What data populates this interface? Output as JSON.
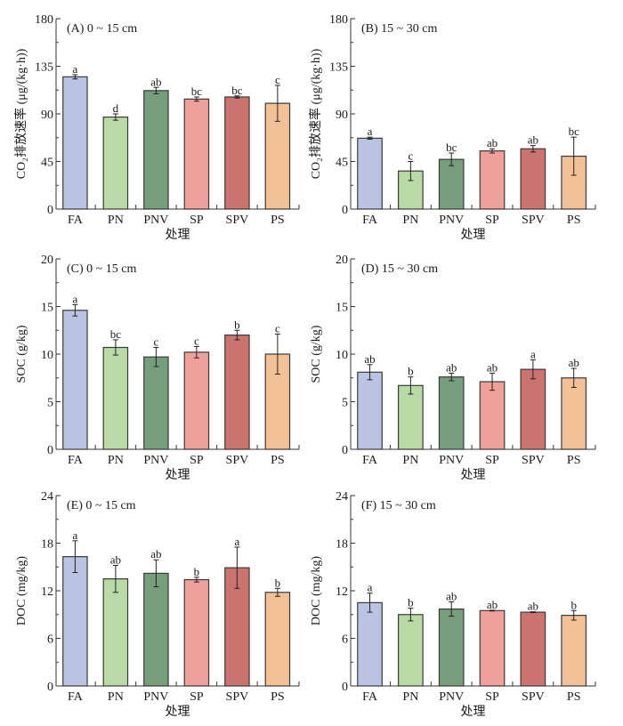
{
  "colors": [
    "#bbc3e3",
    "#b9d9a7",
    "#769e7c",
    "#eea09b",
    "#cb736e",
    "#f3c196"
  ],
  "chart_data": [
    {
      "type": "bar",
      "panel": "A",
      "title": "(A) 0 ~ 15 cm",
      "xlabel": "处理",
      "ylabel": "CO₂排放速率 (μg/(kg·h))",
      "ylim": [
        0,
        180
      ],
      "yticks": [
        0,
        45,
        90,
        135,
        180
      ],
      "categories": [
        "FA",
        "PN",
        "PNV",
        "SP",
        "SPV",
        "PS"
      ],
      "values": [
        125,
        87,
        112,
        104,
        106,
        100
      ],
      "errors": [
        2,
        3,
        3,
        2,
        1,
        17
      ],
      "letters": [
        "a",
        "d",
        "ab",
        "bc",
        "bc",
        "c"
      ]
    },
    {
      "type": "bar",
      "panel": "B",
      "title": "(B) 15 ~ 30 cm",
      "xlabel": "处理",
      "ylabel": "CO₂排放速率 (μg/(kg·h))",
      "ylim": [
        0,
        180
      ],
      "yticks": [
        0,
        45,
        90,
        135,
        180
      ],
      "categories": [
        "FA",
        "PN",
        "PNV",
        "SP",
        "SPV",
        "PS"
      ],
      "values": [
        67,
        36,
        47,
        55,
        57,
        50
      ],
      "errors": [
        1,
        9,
        6,
        2,
        3,
        18
      ],
      "letters": [
        "a",
        "c",
        "bc",
        "ab",
        "ab",
        "bc"
      ]
    },
    {
      "type": "bar",
      "panel": "C",
      "title": "(C) 0 ~ 15 cm",
      "xlabel": "处理",
      "ylabel": "SOC (g/kg)",
      "ylim": [
        0,
        20
      ],
      "yticks": [
        0,
        5,
        10,
        15,
        20
      ],
      "categories": [
        "FA",
        "PN",
        "PNV",
        "SP",
        "SPV",
        "PS"
      ],
      "values": [
        14.6,
        10.7,
        9.7,
        10.2,
        12.0,
        10.0
      ],
      "errors": [
        0.6,
        0.8,
        1.0,
        0.6,
        0.5,
        2.1
      ],
      "letters": [
        "a",
        "bc",
        "c",
        "c",
        "b",
        "c"
      ]
    },
    {
      "type": "bar",
      "panel": "D",
      "title": "(D) 15 ~ 30 cm",
      "xlabel": "处理",
      "ylabel": "SOC (g/kg)",
      "ylim": [
        0,
        20
      ],
      "yticks": [
        0,
        5,
        10,
        15,
        20
      ],
      "categories": [
        "FA",
        "PN",
        "PNV",
        "SP",
        "SPV",
        "PS"
      ],
      "values": [
        8.1,
        6.7,
        7.6,
        7.1,
        8.4,
        7.5
      ],
      "errors": [
        0.8,
        0.9,
        0.4,
        0.9,
        1.0,
        1.0
      ],
      "letters": [
        "ab",
        "b",
        "ab",
        "ab",
        "a",
        "ab"
      ]
    },
    {
      "type": "bar",
      "panel": "E",
      "title": "(E) 0 ~ 15 cm",
      "xlabel": "处理",
      "ylabel": "DOC (mg/kg)",
      "ylim": [
        0,
        24
      ],
      "yticks": [
        0,
        6,
        12,
        18,
        24
      ],
      "categories": [
        "FA",
        "PN",
        "PNV",
        "SP",
        "SPV",
        "PS"
      ],
      "values": [
        16.3,
        13.5,
        14.2,
        13.4,
        14.9,
        11.8
      ],
      "errors": [
        2.0,
        1.7,
        1.7,
        0.3,
        2.6,
        0.5
      ],
      "letters": [
        "a",
        "ab",
        "ab",
        "b",
        "a",
        "b"
      ]
    },
    {
      "type": "bar",
      "panel": "F",
      "title": "(F) 15 ~ 30 cm",
      "xlabel": "处理",
      "ylabel": "DOC (mg/kg)",
      "ylim": [
        0,
        24
      ],
      "yticks": [
        0,
        6,
        12,
        18,
        24
      ],
      "categories": [
        "FA",
        "PN",
        "PNV",
        "SP",
        "SPV",
        "PS"
      ],
      "values": [
        10.5,
        9.0,
        9.7,
        9.5,
        9.3,
        8.9
      ],
      "errors": [
        1.2,
        0.8,
        0.9,
        0.05,
        0.05,
        0.6
      ],
      "letters": [
        "a",
        "b",
        "ab",
        "ab",
        "ab",
        "b"
      ]
    }
  ]
}
